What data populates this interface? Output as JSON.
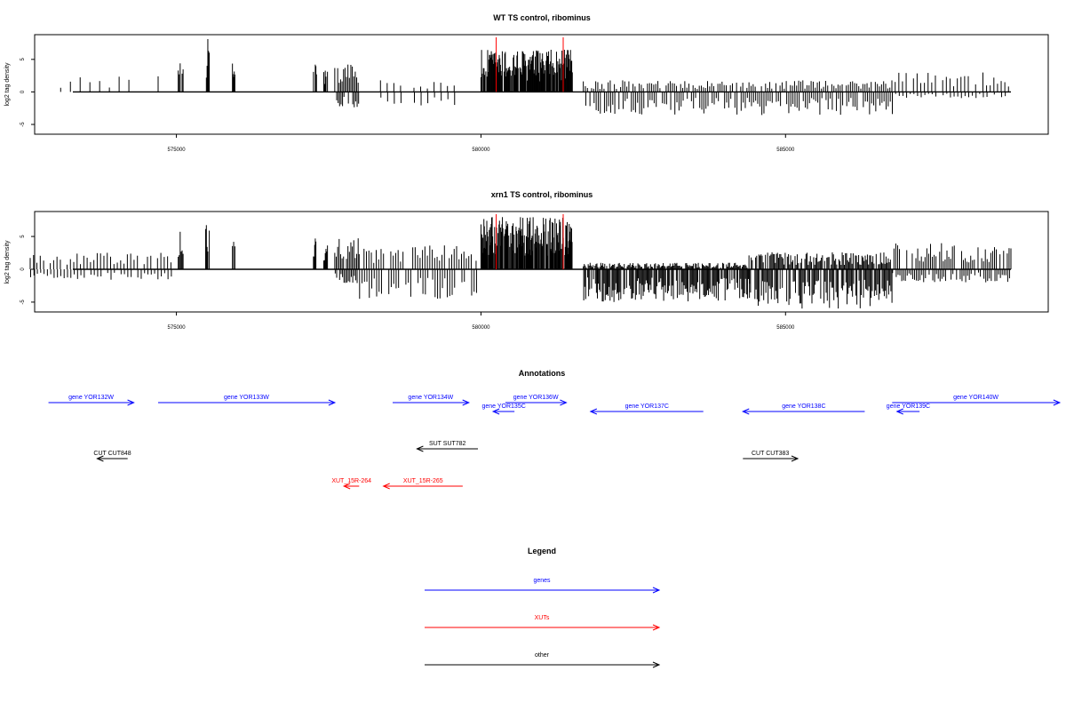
{
  "colors": {
    "genes": "#0000ff",
    "XUTs": "#ff0000",
    "other": "#000000",
    "marker": "#ff0000",
    "frame": "#000000"
  },
  "chart_data": [
    {
      "type": "bar",
      "title": "WT TS control, ribominus",
      "xlabel": "",
      "ylabel": "log2 tag density",
      "xlim": [
        572600,
        588900
      ],
      "ylim": [
        -6.5,
        8.8
      ],
      "x_ticks": [
        575000,
        580000,
        585000
      ],
      "x_tick_labels": [
        "575000",
        "580000",
        "585000"
      ],
      "y_ticks": [
        -5,
        0,
        5
      ],
      "y_tick_labels": [
        "-5",
        "0",
        "5"
      ],
      "grid": false,
      "markers_x": [
        580250,
        581350
      ],
      "profile": "wt",
      "groups": [
        {
          "start": 573100,
          "end": 574700,
          "pos": 2.4,
          "neg": 0,
          "step": 160
        },
        {
          "start": 575030,
          "end": 575110,
          "pos": 5.8,
          "neg": 0,
          "step": 16
        },
        {
          "start": 575480,
          "end": 575540,
          "pos": 8.4,
          "neg": 0,
          "step": 12
        },
        {
          "start": 575920,
          "end": 575960,
          "pos": 4.6,
          "neg": 0,
          "step": 10
        },
        {
          "start": 577250,
          "end": 577300,
          "pos": 5.2,
          "neg": 0,
          "step": 10
        },
        {
          "start": 577420,
          "end": 577480,
          "pos": 3.6,
          "neg": 0,
          "step": 12
        },
        {
          "start": 577600,
          "end": 578000,
          "pos": 4.2,
          "neg": -2.4,
          "step": 24
        },
        {
          "start": 578350,
          "end": 579600,
          "pos": 2.0,
          "neg": -2.5,
          "step": 110
        },
        {
          "start": 580000,
          "end": 581500,
          "pos": 6.5,
          "neg": 0,
          "step": 10
        },
        {
          "start": 581680,
          "end": 586750,
          "pos": 1.8,
          "neg": -3.6,
          "step": 34
        },
        {
          "start": 586800,
          "end": 588700,
          "pos": 3.0,
          "neg": -1.0,
          "step": 60
        }
      ]
    },
    {
      "type": "bar",
      "title": "xrn1 TS control, ribominus",
      "xlabel": "",
      "ylabel": "log2 tag density",
      "xlim": [
        572600,
        588900
      ],
      "ylim": [
        -6.5,
        8.8
      ],
      "x_ticks": [
        575000,
        580000,
        585000
      ],
      "x_tick_labels": [
        "575000",
        "580000",
        "585000"
      ],
      "y_ticks": [
        -5,
        0,
        5
      ],
      "y_tick_labels": [
        "-5",
        "0",
        "5"
      ],
      "grid": false,
      "markers_x": [
        580250,
        581350
      ],
      "profile": "xrn1",
      "groups": [
        {
          "start": 572600,
          "end": 574950,
          "pos": 2.6,
          "neg": -1.6,
          "step": 55
        },
        {
          "start": 575030,
          "end": 575110,
          "pos": 6.2,
          "neg": 0,
          "step": 16
        },
        {
          "start": 575480,
          "end": 575540,
          "pos": 8.0,
          "neg": 0,
          "step": 12
        },
        {
          "start": 575920,
          "end": 575960,
          "pos": 4.8,
          "neg": 0,
          "step": 10
        },
        {
          "start": 577250,
          "end": 577300,
          "pos": 5.4,
          "neg": 0,
          "step": 10
        },
        {
          "start": 577420,
          "end": 577480,
          "pos": 4.6,
          "neg": 0,
          "step": 12
        },
        {
          "start": 577600,
          "end": 578000,
          "pos": 5.0,
          "neg": -2.2,
          "step": 24
        },
        {
          "start": 578000,
          "end": 579950,
          "pos": 3.8,
          "neg": -4.5,
          "step": 40
        },
        {
          "start": 580000,
          "end": 581500,
          "pos": 8.0,
          "neg": 0,
          "step": 8
        },
        {
          "start": 581680,
          "end": 584400,
          "pos": 1.0,
          "neg": -5.0,
          "step": 16
        },
        {
          "start": 584400,
          "end": 586750,
          "pos": 2.6,
          "neg": -6.0,
          "step": 18
        },
        {
          "start": 586750,
          "end": 588700,
          "pos": 4.0,
          "neg": -2.0,
          "step": 30
        }
      ]
    }
  ],
  "annotations": {
    "title": "Annotations",
    "features": [
      {
        "label": "gene YOR132W",
        "category": "genes",
        "start": 572900,
        "end": 574300,
        "strand": "+",
        "row": 0
      },
      {
        "label": "gene YOR133W",
        "category": "genes",
        "start": 574700,
        "end": 577600,
        "strand": "+",
        "row": 0
      },
      {
        "label": "gene YOR134W",
        "category": "genes",
        "start": 578550,
        "end": 579800,
        "strand": "+",
        "row": 0
      },
      {
        "label": "gene YOR136W",
        "category": "genes",
        "start": 580400,
        "end": 581400,
        "strand": "+",
        "row": 0
      },
      {
        "label": "gene YOR135C",
        "category": "genes",
        "start": 580200,
        "end": 580550,
        "strand": "-",
        "row": 1
      },
      {
        "label": "gene YOR137C",
        "category": "genes",
        "start": 581800,
        "end": 583650,
        "strand": "-",
        "row": 1
      },
      {
        "label": "gene YOR138C",
        "category": "genes",
        "start": 584300,
        "end": 586300,
        "strand": "-",
        "row": 1
      },
      {
        "label": "gene YOR139C",
        "category": "genes",
        "start": 586830,
        "end": 587200,
        "strand": "-",
        "row": 1
      },
      {
        "label": "gene YOR140W",
        "category": "genes",
        "start": 586750,
        "end": 589500,
        "strand": "+",
        "row": 0
      },
      {
        "label": "SUT SUT782",
        "category": "other",
        "start": 578950,
        "end": 579950,
        "strand": "-",
        "row": 2
      },
      {
        "label": "CUT CUT383",
        "category": "other",
        "start": 584300,
        "end": 585200,
        "strand": "+",
        "row": 3
      },
      {
        "label": "CUT CUT848",
        "category": "other",
        "start": 573700,
        "end": 574200,
        "strand": "-",
        "row": 3
      },
      {
        "label": "XUT_15R-264",
        "category": "XUTs",
        "start": 577750,
        "end": 578000,
        "strand": "-",
        "row": 4
      },
      {
        "label": "XUT_15R-265",
        "category": "XUTs",
        "start": 578400,
        "end": 579700,
        "strand": "-",
        "row": 4
      }
    ]
  },
  "legend": {
    "title": "Legend",
    "items": [
      {
        "label": "genes",
        "category": "genes"
      },
      {
        "label": "XUTs",
        "category": "XUTs"
      },
      {
        "label": "other",
        "category": "other"
      }
    ]
  }
}
